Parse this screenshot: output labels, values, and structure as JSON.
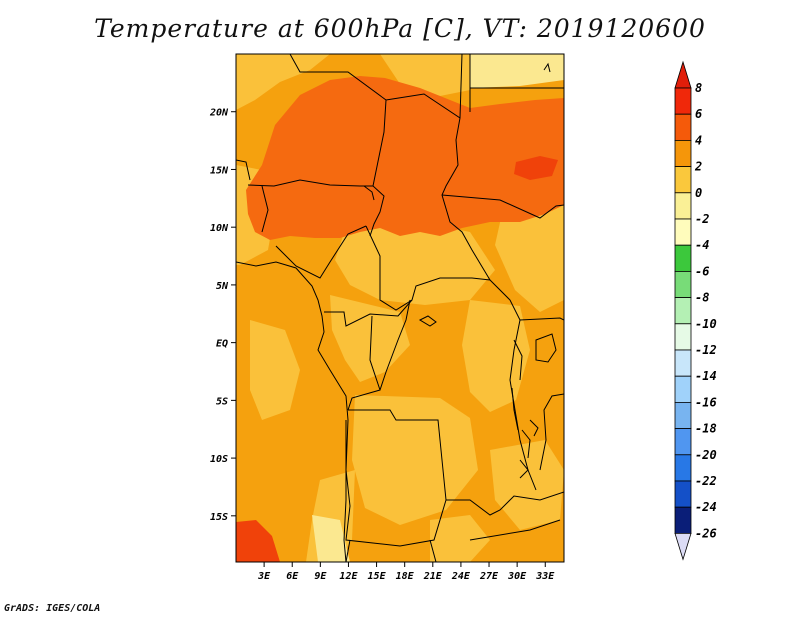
{
  "title": "Temperature at 600hPa [C], VT: 2019120600",
  "credit": "GrADS: IGES/COLA",
  "map": {
    "variable": "Temperature at 600hPa",
    "units": "C",
    "valid_time": "2019120600",
    "lat_range": [
      -19,
      25
    ],
    "lon_range": [
      0,
      35
    ],
    "lat_ticks": [
      {
        "value": 20,
        "label": "20N"
      },
      {
        "value": 15,
        "label": "15N"
      },
      {
        "value": 10,
        "label": "10N"
      },
      {
        "value": 5,
        "label": "5N"
      },
      {
        "value": 0,
        "label": "EQ"
      },
      {
        "value": -5,
        "label": "5S"
      },
      {
        "value": -10,
        "label": "10S"
      },
      {
        "value": -15,
        "label": "15S"
      }
    ],
    "lon_ticks": [
      {
        "value": 3,
        "label": "3E"
      },
      {
        "value": 6,
        "label": "6E"
      },
      {
        "value": 9,
        "label": "9E"
      },
      {
        "value": 12,
        "label": "12E"
      },
      {
        "value": 15,
        "label": "15E"
      },
      {
        "value": 18,
        "label": "18E"
      },
      {
        "value": 21,
        "label": "21E"
      },
      {
        "value": 24,
        "label": "24E"
      },
      {
        "value": 27,
        "label": "27E"
      },
      {
        "value": 30,
        "label": "30E"
      },
      {
        "value": 33,
        "label": "33E"
      }
    ]
  },
  "colorbar": {
    "labels": [
      "8",
      "6",
      "4",
      "2",
      "0",
      "-2",
      "-4",
      "-6",
      "-8",
      "-10",
      "-12",
      "-14",
      "-16",
      "-18",
      "-20",
      "-22",
      "-24",
      "-26"
    ],
    "colors": [
      "#f0280a",
      "#f55a0a",
      "#f5960a",
      "#fac83c",
      "#faf096",
      "#fffcbc",
      "#3cc83c",
      "#78dc78",
      "#b4f0b4",
      "#e6fae6",
      "#c8e6fa",
      "#a0d2fa",
      "#78b4f0",
      "#5096f0",
      "#2878e6",
      "#1450c8",
      "#0a1e78"
    ],
    "top_arrow_color": "#e11e0a",
    "bottom_arrow_color": "#dcdcf5"
  }
}
